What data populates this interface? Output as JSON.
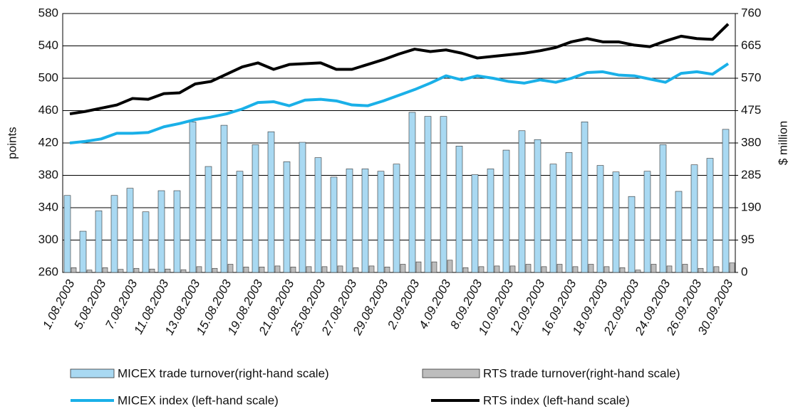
{
  "chart_data": {
    "type": "bar-line",
    "categories": [
      "1.08.2003",
      null,
      "5.08.2003",
      null,
      "7.08.2003",
      null,
      "11.08.2003",
      null,
      "13.08.2003",
      null,
      "15.08.2003",
      null,
      "19.08.2003",
      null,
      "21.08.2003",
      null,
      "25.08.2003",
      null,
      "27.08.2003",
      null,
      "29.08.2003",
      null,
      "2.09.2003",
      null,
      "4.09.2003",
      null,
      "8.09.2003",
      null,
      "10.09.2003",
      null,
      "12.09.2003",
      null,
      "16.09.2003",
      null,
      "18.09.2003",
      null,
      "22.09.2003",
      null,
      "24.09.2003",
      null,
      "26.09.2003",
      null,
      "30.09.2003"
    ],
    "ylabel": "points",
    "y2label": "$ million",
    "ylim": [
      260,
      580
    ],
    "yticks": [
      260,
      300,
      340,
      380,
      420,
      460,
      500,
      540,
      580
    ],
    "y2lim": [
      0,
      760
    ],
    "y2ticks": [
      0,
      95,
      190,
      285,
      380,
      475,
      570,
      665,
      760
    ],
    "grid": true,
    "series": [
      {
        "name": "MICEX trade turnover(right-hand scale)",
        "kind": "bar",
        "axis": "y2",
        "color": "#a9d9f2",
        "values": [
          226,
          121,
          181,
          226,
          247,
          178,
          240,
          240,
          442,
          311,
          432,
          297,
          375,
          413,
          325,
          382,
          337,
          280,
          304,
          304,
          297,
          318,
          470,
          458,
          458,
          371,
          287,
          304,
          359,
          416,
          390,
          318,
          352,
          442,
          314,
          295,
          223,
          297,
          375,
          238,
          316,
          335,
          420
        ]
      },
      {
        "name": "RTS trade turnover(right-hand scale)",
        "kind": "bar",
        "axis": "y2",
        "color": "#bdbdbd",
        "values": [
          14,
          7,
          14,
          9,
          12,
          10,
          10,
          8,
          17,
          12,
          24,
          16,
          16,
          19,
          16,
          17,
          17,
          19,
          14,
          19,
          16,
          24,
          31,
          31,
          36,
          14,
          17,
          19,
          19,
          24,
          17,
          24,
          17,
          24,
          17,
          14,
          7,
          24,
          19,
          24,
          12,
          17,
          28
        ]
      },
      {
        "name": "MICEX index (left-hand scale)",
        "kind": "line",
        "color": "#1ab0e8",
        "values": [
          420,
          422,
          425,
          432,
          432,
          433,
          440,
          444,
          449,
          452,
          456,
          462,
          470,
          471,
          466,
          473,
          474,
          472,
          467,
          466,
          472,
          479,
          486,
          494,
          503,
          498,
          503,
          500,
          496,
          494,
          498,
          495,
          500,
          507,
          508,
          504,
          503,
          499,
          495,
          506,
          508,
          505,
          518
        ]
      },
      {
        "name": "RTS index (left-hand scale)",
        "kind": "line",
        "color": "#000000",
        "values": [
          456,
          459,
          463,
          467,
          475,
          474,
          481,
          482,
          493,
          496,
          505,
          514,
          519,
          511,
          517,
          518,
          519,
          511,
          511,
          517,
          523,
          530,
          536,
          533,
          535,
          531,
          525,
          527,
          529,
          531,
          534,
          538,
          545,
          549,
          545,
          545,
          541,
          539,
          546,
          552,
          549,
          548,
          567
        ]
      }
    ]
  }
}
